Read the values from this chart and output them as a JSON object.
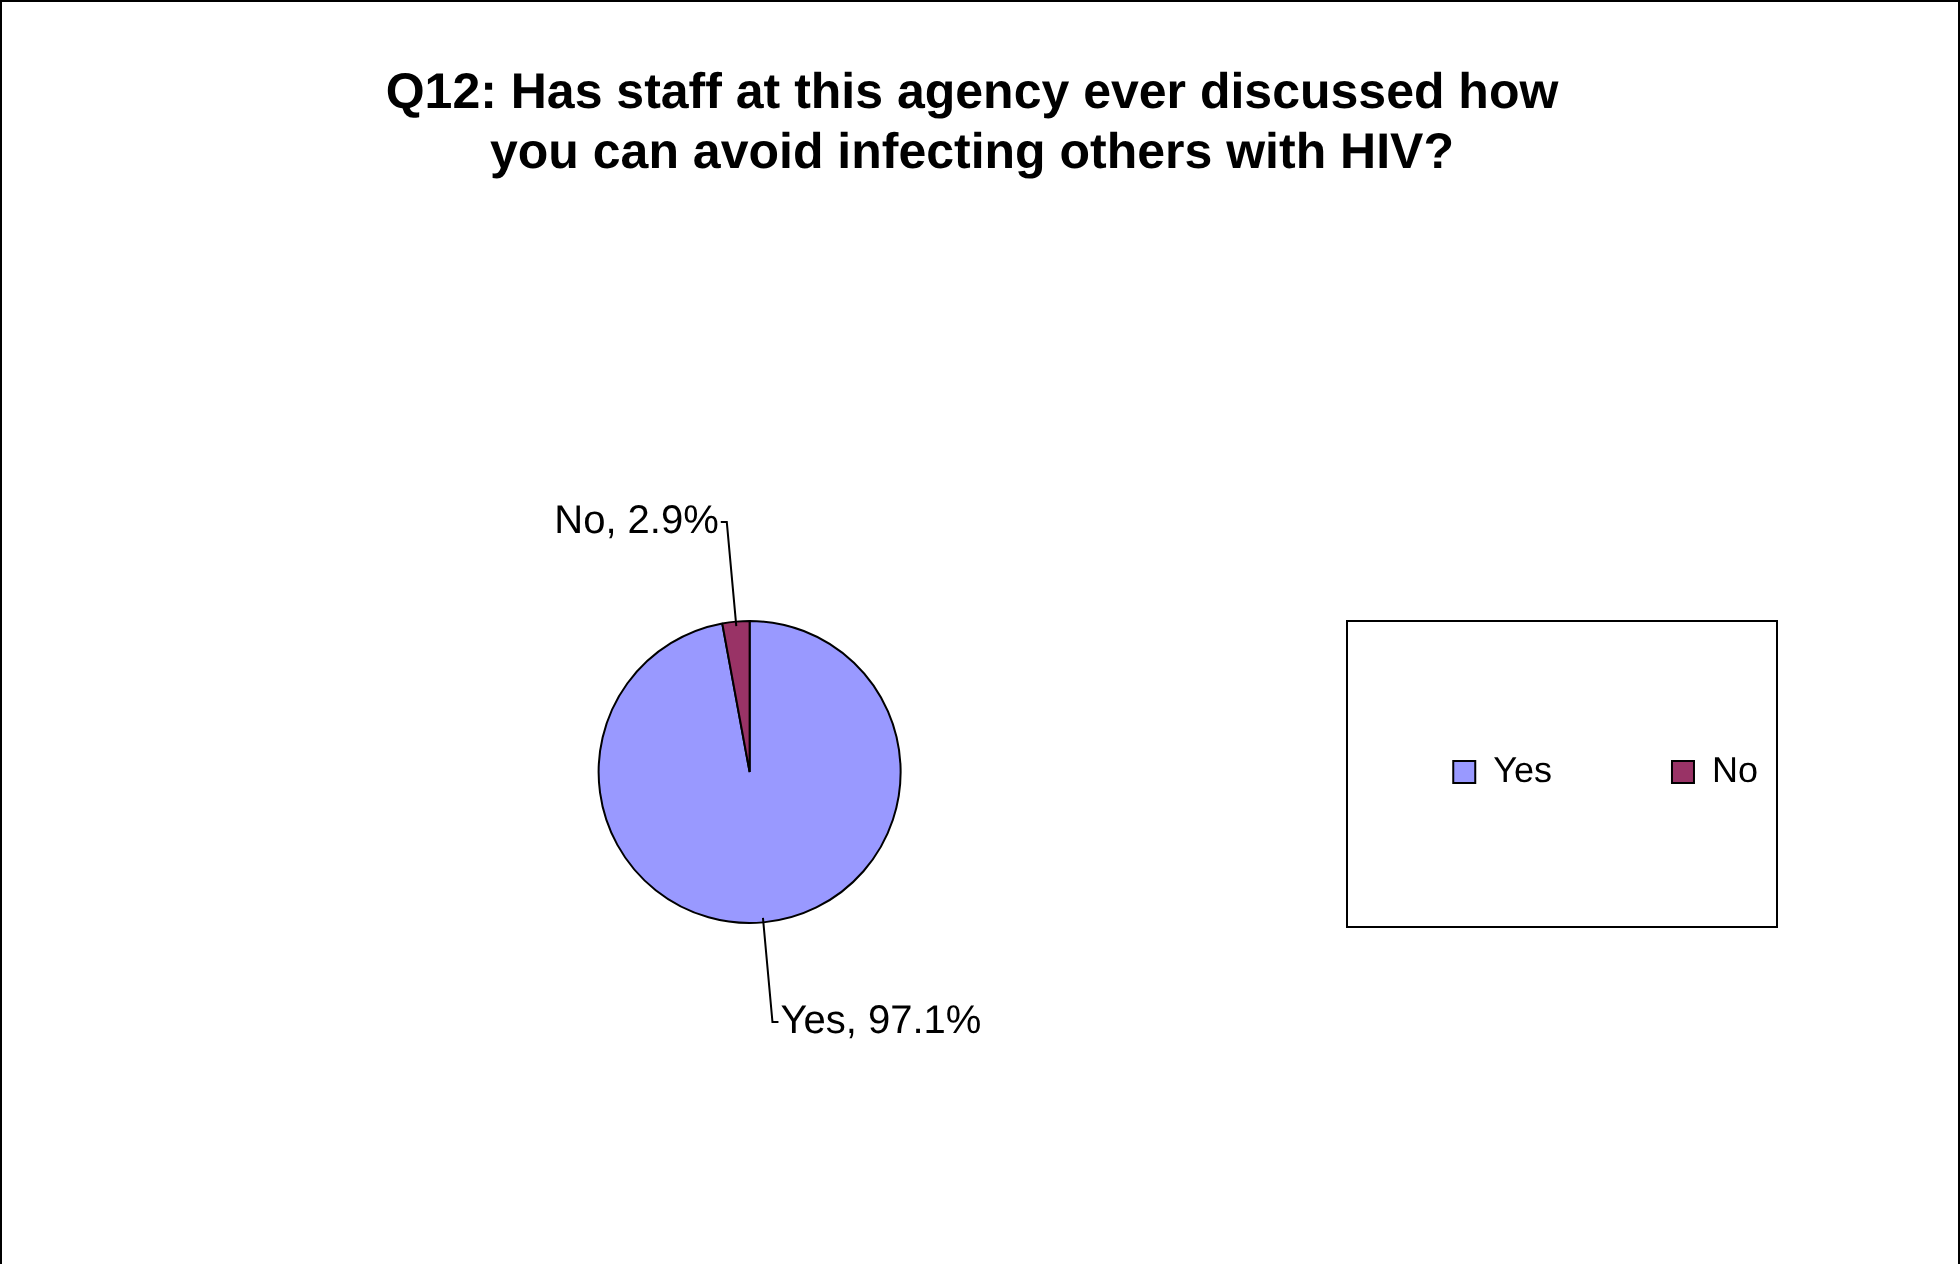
{
  "chart_data": {
    "type": "pie",
    "title": "Q12: Has staff at this agency ever discussed how you can avoid infecting others with HIV?",
    "categories": [
      "Yes",
      "No"
    ],
    "values": [
      97.1,
      2.9
    ],
    "colors": [
      "#9999ff",
      "#993366"
    ],
    "value_labels": [
      "Yes, 97.1%",
      "No, 2.9%"
    ],
    "legend": "right"
  }
}
